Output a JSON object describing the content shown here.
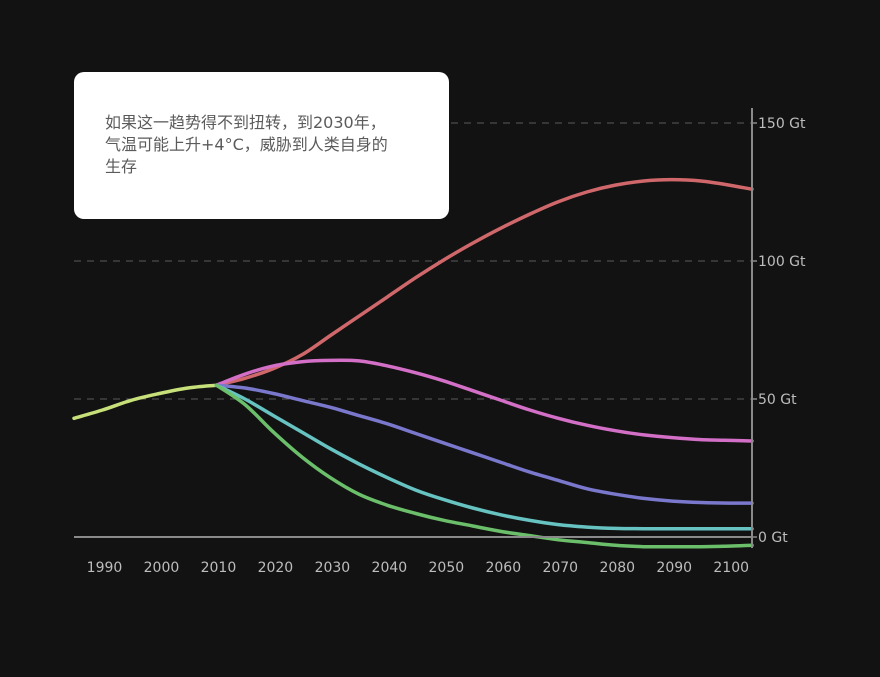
{
  "callout": {
    "text": "如果这一趋势得不到扭转，到2030年，气温可能上升+4°C，威胁到人类自身的生存"
  },
  "colors": {
    "background": "#121212",
    "axis": "#8a8a8a",
    "grid": "#5a5a5a",
    "tick_text": "#bdbdbd"
  },
  "chart_data": {
    "type": "line",
    "xlim": [
      1985,
      2104
    ],
    "ylim": [
      -5,
      150
    ],
    "x_ticks": [
      1990,
      2000,
      2010,
      2020,
      2030,
      2040,
      2050,
      2060,
      2070,
      2080,
      2090,
      2100
    ],
    "y_ticks": [
      {
        "value": 0,
        "label": "0 Gt"
      },
      {
        "value": 50,
        "label": "50 Gt"
      },
      {
        "value": 100,
        "label": "100 Gt"
      },
      {
        "value": 150,
        "label": "150 Gt"
      }
    ],
    "grid": "horizontal dashed",
    "y_axis_position": "right",
    "series": [
      {
        "color": "#c7e07a",
        "points": [
          [
            1985,
            43
          ],
          [
            1990,
            46
          ],
          [
            1995,
            49.5
          ],
          [
            2000,
            52
          ],
          [
            2005,
            54
          ],
          [
            2010,
            55
          ]
        ]
      },
      {
        "color": "#d0686b",
        "points": [
          [
            2010,
            55
          ],
          [
            2015,
            57.5
          ],
          [
            2020,
            61
          ],
          [
            2025,
            66
          ],
          [
            2030,
            73
          ],
          [
            2035,
            80
          ],
          [
            2040,
            87
          ],
          [
            2045,
            94
          ],
          [
            2050,
            100.5
          ],
          [
            2055,
            106.5
          ],
          [
            2060,
            112
          ],
          [
            2065,
            117
          ],
          [
            2070,
            121.5
          ],
          [
            2075,
            125
          ],
          [
            2080,
            127.5
          ],
          [
            2085,
            129
          ],
          [
            2090,
            129.5
          ],
          [
            2095,
            129
          ],
          [
            2100,
            127.5
          ],
          [
            2104,
            126
          ]
        ]
      },
      {
        "color": "#d36fc6",
        "points": [
          [
            2010,
            55
          ],
          [
            2015,
            59
          ],
          [
            2020,
            62
          ],
          [
            2025,
            63.5
          ],
          [
            2030,
            64
          ],
          [
            2035,
            63.8
          ],
          [
            2040,
            62
          ],
          [
            2045,
            59.5
          ],
          [
            2050,
            56.5
          ],
          [
            2055,
            53
          ],
          [
            2060,
            49.5
          ],
          [
            2065,
            46
          ],
          [
            2070,
            43
          ],
          [
            2075,
            40.5
          ],
          [
            2080,
            38.5
          ],
          [
            2085,
            37
          ],
          [
            2090,
            36
          ],
          [
            2095,
            35.3
          ],
          [
            2100,
            35
          ],
          [
            2104,
            34.8
          ]
        ]
      },
      {
        "color": "#7a78cc",
        "points": [
          [
            2010,
            55
          ],
          [
            2015,
            54
          ],
          [
            2020,
            52
          ],
          [
            2025,
            49.5
          ],
          [
            2030,
            47
          ],
          [
            2035,
            44
          ],
          [
            2040,
            41
          ],
          [
            2045,
            37.5
          ],
          [
            2050,
            34
          ],
          [
            2055,
            30.5
          ],
          [
            2060,
            27
          ],
          [
            2065,
            23.5
          ],
          [
            2070,
            20.5
          ],
          [
            2075,
            17.5
          ],
          [
            2080,
            15.5
          ],
          [
            2085,
            14
          ],
          [
            2090,
            13
          ],
          [
            2095,
            12.5
          ],
          [
            2100,
            12.3
          ],
          [
            2104,
            12.3
          ]
        ]
      },
      {
        "color": "#66c3c1",
        "points": [
          [
            2010,
            55
          ],
          [
            2015,
            50
          ],
          [
            2020,
            44
          ],
          [
            2025,
            38
          ],
          [
            2030,
            32
          ],
          [
            2035,
            26.5
          ],
          [
            2040,
            21.5
          ],
          [
            2045,
            17
          ],
          [
            2050,
            13.5
          ],
          [
            2055,
            10.5
          ],
          [
            2060,
            8
          ],
          [
            2065,
            6
          ],
          [
            2070,
            4.5
          ],
          [
            2075,
            3.6
          ],
          [
            2080,
            3.1
          ],
          [
            2085,
            3
          ],
          [
            2090,
            3
          ],
          [
            2095,
            3
          ],
          [
            2100,
            3
          ],
          [
            2104,
            3
          ]
        ]
      },
      {
        "color": "#6cbf6a",
        "points": [
          [
            2010,
            55
          ],
          [
            2015,
            48
          ],
          [
            2020,
            38
          ],
          [
            2025,
            29
          ],
          [
            2030,
            21.5
          ],
          [
            2035,
            15.5
          ],
          [
            2040,
            11.5
          ],
          [
            2045,
            8.5
          ],
          [
            2050,
            6
          ],
          [
            2055,
            4
          ],
          [
            2060,
            2
          ],
          [
            2065,
            0.5
          ],
          [
            2070,
            -1
          ],
          [
            2075,
            -2
          ],
          [
            2080,
            -3
          ],
          [
            2085,
            -3.5
          ],
          [
            2090,
            -3.5
          ],
          [
            2095,
            -3.5
          ],
          [
            2100,
            -3.3
          ],
          [
            2104,
            -3
          ]
        ]
      }
    ]
  }
}
